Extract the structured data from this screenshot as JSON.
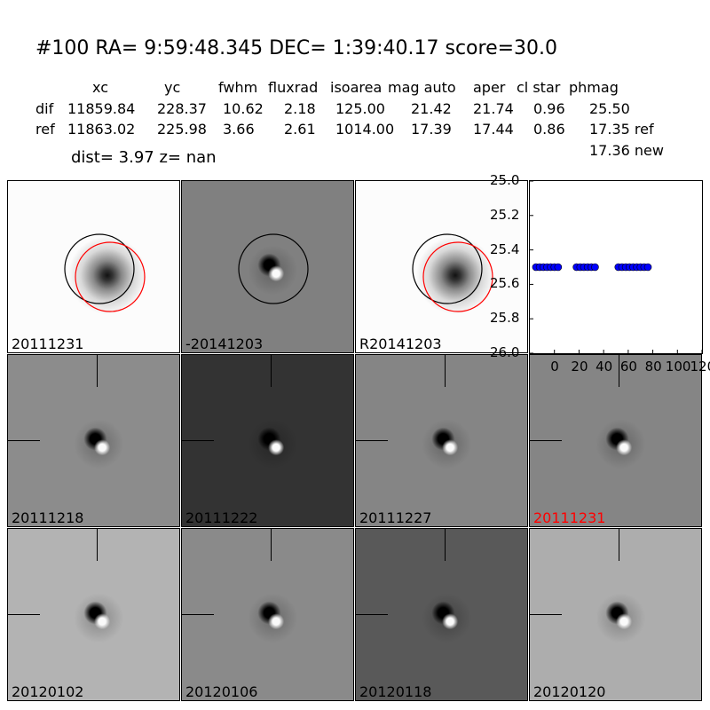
{
  "header": {
    "title": "#100   RA= 9:59:48.345 DEC= 1:39:40.17      score=30.0",
    "columns": [
      "xc",
      "yc",
      "fwhm",
      "fluxrad",
      "isoarea",
      "mag auto",
      "aper",
      "cl star",
      "phmag"
    ],
    "rows": [
      {
        "label": "dif",
        "values": [
          "11859.84",
          "228.37",
          "10.62",
          "2.18",
          "125.00",
          "21.42",
          "21.74",
          "0.96",
          "25.50"
        ]
      },
      {
        "label": "ref",
        "values": [
          "11863.02",
          "225.98",
          "3.66",
          "2.61",
          "1014.00",
          "17.39",
          "17.44",
          "0.86",
          "17.35 ref"
        ]
      }
    ],
    "new_phmag": "17.36 new",
    "dist_line": "dist=  3.97      z=   nan"
  },
  "panels": [
    {
      "label": "20111231",
      "bg": "#fcfcfc",
      "type": "ref",
      "circles": true
    },
    {
      "label": "-20141203",
      "bg": "#808080",
      "type": "dif",
      "circles": true
    },
    {
      "label": "R20141203",
      "bg": "#fcfcfc",
      "type": "ref",
      "circles": true
    },
    {
      "label": "20111218",
      "bg": "#8c8c8c",
      "type": "dif"
    },
    {
      "label": "20111222",
      "bg": "#333333",
      "type": "dif"
    },
    {
      "label": "20111227",
      "bg": "#858585",
      "type": "dif"
    },
    {
      "label": "20111231",
      "bg": "#858585",
      "type": "dif",
      "red": true
    },
    {
      "label": "20120102",
      "bg": "#b3b3b3",
      "type": "dif"
    },
    {
      "label": "20120106",
      "bg": "#8a8a8a",
      "type": "dif"
    },
    {
      "label": "20120118",
      "bg": "#595959",
      "type": "dif"
    },
    {
      "label": "20120120",
      "bg": "#adadad",
      "type": "dif"
    }
  ],
  "chart_data": {
    "type": "scatter",
    "xlim": [
      -20,
      120
    ],
    "ylim": [
      26.0,
      25.0
    ],
    "y_inverted": true,
    "xticks": [
      0,
      20,
      40,
      60,
      80,
      100,
      120
    ],
    "yticks": [
      25.0,
      25.2,
      25.4,
      25.6,
      25.8,
      26.0
    ],
    "point_color": "#0000ff",
    "x": [
      -15,
      -12,
      -9,
      -6,
      -3,
      0,
      3,
      18,
      21,
      24,
      27,
      30,
      33,
      52,
      55,
      58,
      61,
      64,
      67,
      70,
      73,
      76
    ],
    "y": [
      25.5,
      25.5,
      25.5,
      25.5,
      25.5,
      25.5,
      25.5,
      25.5,
      25.5,
      25.5,
      25.5,
      25.5,
      25.5,
      25.5,
      25.5,
      25.5,
      25.5,
      25.5,
      25.5,
      25.5,
      25.5,
      25.5
    ]
  }
}
